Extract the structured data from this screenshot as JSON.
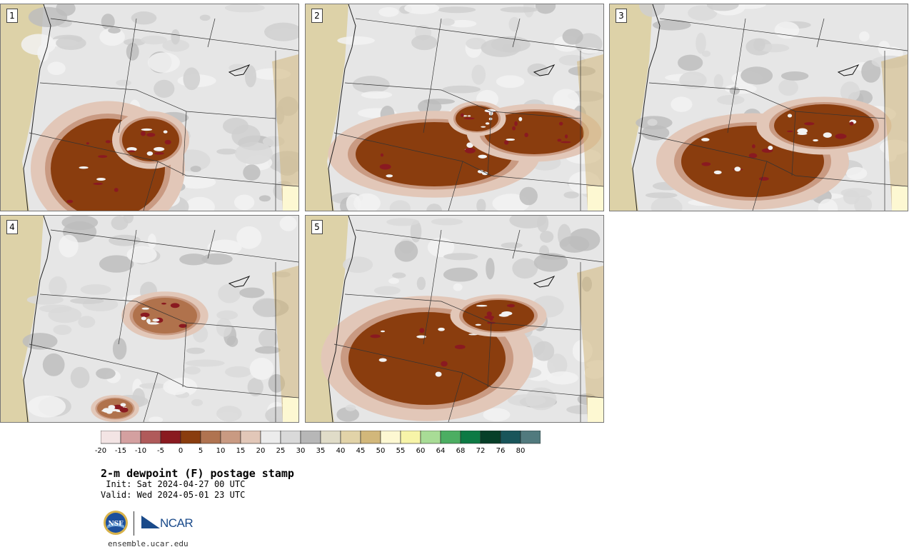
{
  "figure": {
    "title": "2-m dewpoint (F) postage stamp",
    "init": " Init: Sat 2024-04-27 00 UTC",
    "valid": "Valid: Wed 2024-05-01 23 UTC",
    "site": "ensemble.ucar.edu"
  },
  "logos": {
    "nsf": "NSF",
    "ncar": "NCAR"
  },
  "panels": [
    {
      "label": "1",
      "blob_color": "#8a3d0e"
    },
    {
      "label": "2",
      "blob_color": "#8a3d0e"
    },
    {
      "label": "3",
      "blob_color": "#8a3d0e"
    },
    {
      "label": "4",
      "blob_color": "#b0724c"
    },
    {
      "label": "5",
      "blob_color": "#8a3d0e"
    }
  ],
  "chart_data": {
    "type": "heatmap",
    "title": "2-m dewpoint (F) postage stamp",
    "colorbar": {
      "ticks": [
        "-20",
        "-15",
        "-10",
        "-5",
        "0",
        "5",
        "10",
        "15",
        "20",
        "25",
        "30",
        "35",
        "40",
        "45",
        "50",
        "55",
        "60",
        "64",
        "68",
        "72",
        "76",
        "80"
      ],
      "colors": [
        "#f3e4e4",
        "#d4a0a0",
        "#b05a5a",
        "#8a1a20",
        "#8a3d0e",
        "#b07350",
        "#c99a82",
        "#e2c7b8",
        "#ececec",
        "#d9d9d9",
        "#b7b7b7",
        "#e0dcc8",
        "#e2d3a8",
        "#d2b77a",
        "#fdf8d2",
        "#f7f4a8",
        "#a8dc96",
        "#4cae62",
        "#0d7a44",
        "#073f28",
        "#19555a",
        "#517a7e"
      ]
    }
  }
}
